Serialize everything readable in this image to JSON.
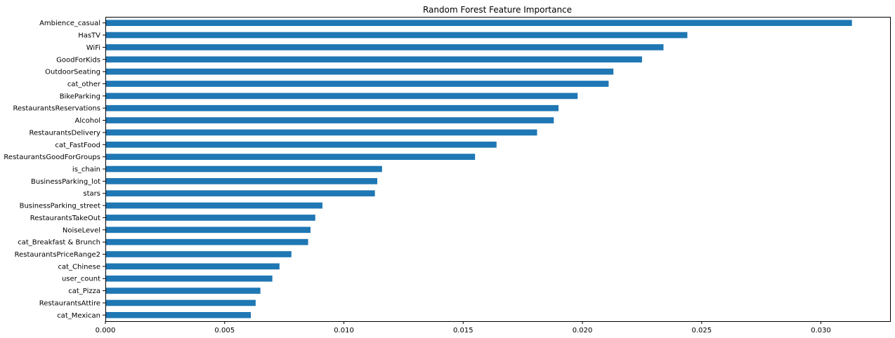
{
  "chart_data": {
    "type": "bar",
    "orientation": "horizontal",
    "title": "Random Forest Feature Importance",
    "xlabel": "",
    "ylabel": "",
    "xlim": [
      0,
      0.0329
    ],
    "xticks": [
      0.0,
      0.005,
      0.01,
      0.015,
      0.02,
      0.025,
      0.03
    ],
    "xtick_labels": [
      "0.000",
      "0.005",
      "0.010",
      "0.015",
      "0.020",
      "0.025",
      "0.030"
    ],
    "grid": false,
    "bar_color": "#1f77b4",
    "categories": [
      "Ambience_casual",
      "HasTV",
      "WiFi",
      "GoodForKids",
      "OutdoorSeating",
      "cat_other",
      "BikeParking",
      "RestaurantsReservations",
      "Alcohol",
      "RestaurantsDelivery",
      "cat_FastFood",
      "RestaurantsGoodForGroups",
      "is_chain",
      "BusinessParking_lot",
      "stars",
      "BusinessParking_street",
      "RestaurantsTakeOut",
      "NoiseLevel",
      "cat_Breakfast & Brunch",
      "RestaurantsPriceRange2",
      "cat_Chinese",
      "user_count",
      "cat_Pizza",
      "RestaurantsAttire",
      "cat_Mexican"
    ],
    "values": [
      0.0313,
      0.0244,
      0.0234,
      0.0225,
      0.0213,
      0.0211,
      0.0198,
      0.019,
      0.0188,
      0.0181,
      0.0164,
      0.0155,
      0.0116,
      0.0114,
      0.0113,
      0.0091,
      0.0088,
      0.0086,
      0.0085,
      0.0078,
      0.0073,
      0.007,
      0.0065,
      0.0063,
      0.0061
    ]
  }
}
